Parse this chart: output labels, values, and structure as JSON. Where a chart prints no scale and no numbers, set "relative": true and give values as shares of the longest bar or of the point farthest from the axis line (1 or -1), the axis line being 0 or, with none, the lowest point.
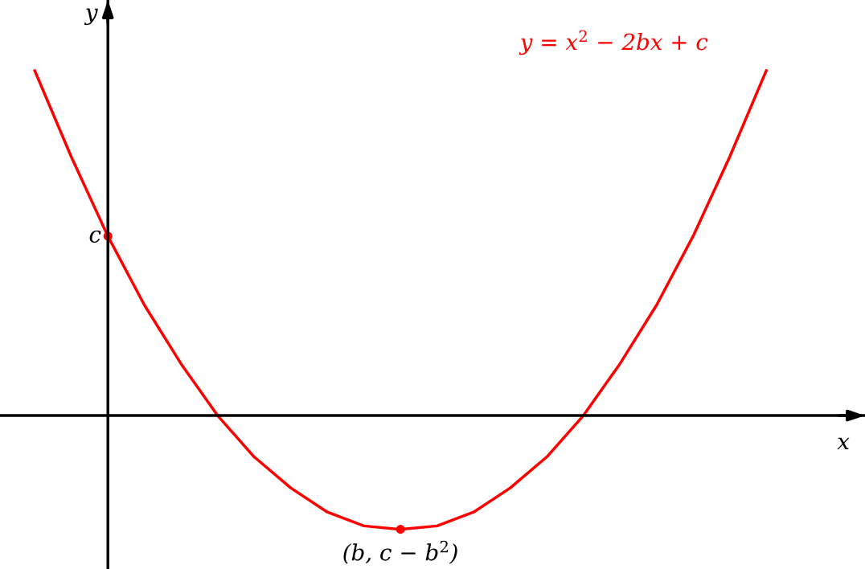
{
  "chart_data": {
    "type": "line",
    "relative": true,
    "xlabel": "x",
    "ylabel": "y",
    "categories": [
      null,
      null,
      null,
      null,
      null,
      null,
      null,
      null,
      null,
      null,
      null,
      null,
      null,
      null,
      null,
      null,
      null,
      null,
      null,
      null,
      null
    ],
    "series": [
      {
        "name": "y = x$^{2}$ − 2bx + c",
        "color": "#ff0000",
        "values": [
          1.0,
          0.75,
          0.52,
          0.32,
          0.15,
          0.0,
          -0.12,
          -0.21,
          -0.28,
          -0.32,
          -0.33,
          -0.32,
          -0.28,
          -0.21,
          -0.12,
          0.0,
          0.15,
          0.32,
          0.52,
          0.75,
          1.0
        ]
      }
    ],
    "annotations": [
      "c",
      "(b, c − b$^{2}$)"
    ],
    "marker": "none",
    "line_style": "solid",
    "grid": false,
    "legend": false
  }
}
